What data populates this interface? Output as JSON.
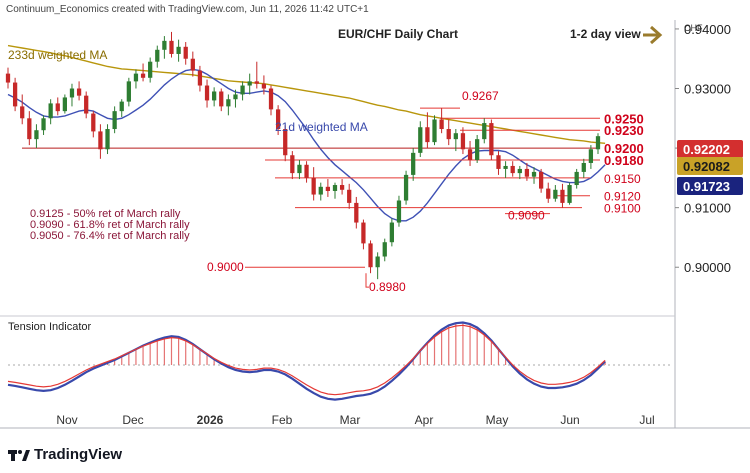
{
  "header": {
    "credit": "Continuum_Economics created with TradingView.com, Jun 11, 2026 11:42 UTC+1",
    "title": "EUR/CHF Daily Chart",
    "view_label": "1-2 day view",
    "currency": "CHF"
  },
  "colors": {
    "candle_up": "#2e7d32",
    "candle_down": "#c62828",
    "ma233": "#b8960c",
    "ma21": "#3f51b5",
    "levels": "#d0021b",
    "arrow": "#9a7b2c",
    "badge_last": "#d32f2f",
    "badge_ma233": "#c9a227",
    "badge_ma21": "#1a237e",
    "tension_bar": "#e57373"
  },
  "annotations": {
    "ma233_label": "233d weighted MA",
    "ma21_label": "21d weighted MA",
    "notes": [
      "0.9125 - 50% ret of March rally",
      "0.9090 - 61.8% ret of March rally",
      "0.9050 - 76.4% ret of March rally"
    ],
    "tension_label": "Tension Indicator"
  },
  "footer": {
    "brand": "TradingView"
  },
  "chart_data": {
    "type": "candlestick",
    "title": "EUR/CHF Daily Chart",
    "ylim": [
      0.8945,
      0.9415
    ],
    "price_ticks": [
      0.9,
      0.91,
      0.92,
      0.93,
      0.94
    ],
    "price_tick_labels": [
      "0.90000",
      "0.91000",
      "0.92000",
      "0.93000",
      "0.94000"
    ],
    "x_tick_labels": [
      "Nov",
      "Dec",
      "2026",
      "Feb",
      "Mar",
      "Apr",
      "May",
      "Jun",
      "Jul"
    ],
    "ohlc": [
      {
        "o": 0.9325,
        "h": 0.9335,
        "l": 0.93,
        "c": 0.931
      },
      {
        "o": 0.931,
        "h": 0.9318,
        "l": 0.9262,
        "c": 0.927
      },
      {
        "o": 0.927,
        "h": 0.929,
        "l": 0.924,
        "c": 0.925
      },
      {
        "o": 0.925,
        "h": 0.9262,
        "l": 0.9205,
        "c": 0.9215
      },
      {
        "o": 0.9215,
        "h": 0.924,
        "l": 0.92,
        "c": 0.923
      },
      {
        "o": 0.923,
        "h": 0.9255,
        "l": 0.9222,
        "c": 0.925
      },
      {
        "o": 0.925,
        "h": 0.9282,
        "l": 0.924,
        "c": 0.9275
      },
      {
        "o": 0.9275,
        "h": 0.9285,
        "l": 0.9255,
        "c": 0.9262
      },
      {
        "o": 0.9262,
        "h": 0.929,
        "l": 0.9258,
        "c": 0.9285
      },
      {
        "o": 0.9285,
        "h": 0.9308,
        "l": 0.927,
        "c": 0.93
      },
      {
        "o": 0.93,
        "h": 0.9312,
        "l": 0.928,
        "c": 0.9288
      },
      {
        "o": 0.9288,
        "h": 0.9295,
        "l": 0.925,
        "c": 0.9258
      },
      {
        "o": 0.9258,
        "h": 0.9262,
        "l": 0.9218,
        "c": 0.9228
      },
      {
        "o": 0.9228,
        "h": 0.924,
        "l": 0.9182,
        "c": 0.9198
      },
      {
        "o": 0.9198,
        "h": 0.924,
        "l": 0.919,
        "c": 0.9232
      },
      {
        "o": 0.9232,
        "h": 0.927,
        "l": 0.9225,
        "c": 0.9262
      },
      {
        "o": 0.9262,
        "h": 0.9282,
        "l": 0.9252,
        "c": 0.9278
      },
      {
        "o": 0.9278,
        "h": 0.9318,
        "l": 0.927,
        "c": 0.9312
      },
      {
        "o": 0.9312,
        "h": 0.9332,
        "l": 0.93,
        "c": 0.9325
      },
      {
        "o": 0.9325,
        "h": 0.9342,
        "l": 0.9312,
        "c": 0.9318
      },
      {
        "o": 0.9318,
        "h": 0.9352,
        "l": 0.931,
        "c": 0.9345
      },
      {
        "o": 0.9345,
        "h": 0.9372,
        "l": 0.9335,
        "c": 0.9365
      },
      {
        "o": 0.9365,
        "h": 0.9388,
        "l": 0.935,
        "c": 0.938
      },
      {
        "o": 0.938,
        "h": 0.9395,
        "l": 0.9352,
        "c": 0.9358
      },
      {
        "o": 0.9358,
        "h": 0.9382,
        "l": 0.9345,
        "c": 0.937
      },
      {
        "o": 0.937,
        "h": 0.9378,
        "l": 0.934,
        "c": 0.935
      },
      {
        "o": 0.935,
        "h": 0.9362,
        "l": 0.932,
        "c": 0.933
      },
      {
        "o": 0.933,
        "h": 0.9338,
        "l": 0.9295,
        "c": 0.9305
      },
      {
        "o": 0.9305,
        "h": 0.9315,
        "l": 0.9268,
        "c": 0.928
      },
      {
        "o": 0.928,
        "h": 0.9302,
        "l": 0.927,
        "c": 0.9295
      },
      {
        "o": 0.9295,
        "h": 0.93,
        "l": 0.9262,
        "c": 0.927
      },
      {
        "o": 0.927,
        "h": 0.929,
        "l": 0.9255,
        "c": 0.9282
      },
      {
        "o": 0.9282,
        "h": 0.9298,
        "l": 0.9268,
        "c": 0.929
      },
      {
        "o": 0.929,
        "h": 0.9312,
        "l": 0.928,
        "c": 0.9305
      },
      {
        "o": 0.9305,
        "h": 0.9325,
        "l": 0.929,
        "c": 0.9312
      },
      {
        "o": 0.9312,
        "h": 0.9345,
        "l": 0.93,
        "c": 0.9308
      },
      {
        "o": 0.9308,
        "h": 0.9322,
        "l": 0.929,
        "c": 0.93
      },
      {
        "o": 0.93,
        "h": 0.9305,
        "l": 0.9255,
        "c": 0.9265
      },
      {
        "o": 0.9265,
        "h": 0.9272,
        "l": 0.9222,
        "c": 0.9232
      },
      {
        "o": 0.9232,
        "h": 0.9238,
        "l": 0.9178,
        "c": 0.9188
      },
      {
        "o": 0.9188,
        "h": 0.9195,
        "l": 0.9148,
        "c": 0.9158
      },
      {
        "o": 0.9158,
        "h": 0.918,
        "l": 0.9148,
        "c": 0.9172
      },
      {
        "o": 0.9172,
        "h": 0.9178,
        "l": 0.9142,
        "c": 0.915
      },
      {
        "o": 0.915,
        "h": 0.9168,
        "l": 0.9112,
        "c": 0.9122
      },
      {
        "o": 0.9122,
        "h": 0.9142,
        "l": 0.9112,
        "c": 0.9135
      },
      {
        "o": 0.9135,
        "h": 0.9148,
        "l": 0.9118,
        "c": 0.9128
      },
      {
        "o": 0.9128,
        "h": 0.9142,
        "l": 0.9115,
        "c": 0.9138
      },
      {
        "o": 0.9138,
        "h": 0.9148,
        "l": 0.9122,
        "c": 0.913
      },
      {
        "o": 0.913,
        "h": 0.914,
        "l": 0.9098,
        "c": 0.9108
      },
      {
        "o": 0.9108,
        "h": 0.9118,
        "l": 0.9065,
        "c": 0.9075
      },
      {
        "o": 0.9075,
        "h": 0.908,
        "l": 0.903,
        "c": 0.904
      },
      {
        "o": 0.904,
        "h": 0.9045,
        "l": 0.899,
        "c": 0.9
      },
      {
        "o": 0.9,
        "h": 0.9025,
        "l": 0.898,
        "c": 0.9018
      },
      {
        "o": 0.9018,
        "h": 0.9048,
        "l": 0.901,
        "c": 0.9042
      },
      {
        "o": 0.9042,
        "h": 0.9082,
        "l": 0.9035,
        "c": 0.9075
      },
      {
        "o": 0.9075,
        "h": 0.912,
        "l": 0.9068,
        "c": 0.9112
      },
      {
        "o": 0.9112,
        "h": 0.9162,
        "l": 0.9105,
        "c": 0.9155
      },
      {
        "o": 0.9155,
        "h": 0.92,
        "l": 0.9145,
        "c": 0.9192
      },
      {
        "o": 0.9192,
        "h": 0.9245,
        "l": 0.9185,
        "c": 0.9235
      },
      {
        "o": 0.9235,
        "h": 0.926,
        "l": 0.92,
        "c": 0.921
      },
      {
        "o": 0.921,
        "h": 0.9255,
        "l": 0.9205,
        "c": 0.9248
      },
      {
        "o": 0.9248,
        "h": 0.9267,
        "l": 0.9225,
        "c": 0.9232
      },
      {
        "o": 0.9232,
        "h": 0.9248,
        "l": 0.9205,
        "c": 0.9215
      },
      {
        "o": 0.9215,
        "h": 0.9232,
        "l": 0.9195,
        "c": 0.9225
      },
      {
        "o": 0.9225,
        "h": 0.9235,
        "l": 0.919,
        "c": 0.9198
      },
      {
        "o": 0.9198,
        "h": 0.9212,
        "l": 0.917,
        "c": 0.918
      },
      {
        "o": 0.918,
        "h": 0.9222,
        "l": 0.9175,
        "c": 0.9215
      },
      {
        "o": 0.9215,
        "h": 0.925,
        "l": 0.9208,
        "c": 0.9242
      },
      {
        "o": 0.9242,
        "h": 0.9248,
        "l": 0.918,
        "c": 0.9188
      },
      {
        "o": 0.9188,
        "h": 0.9195,
        "l": 0.9155,
        "c": 0.9165
      },
      {
        "o": 0.9165,
        "h": 0.9178,
        "l": 0.915,
        "c": 0.917
      },
      {
        "o": 0.917,
        "h": 0.9178,
        "l": 0.9152,
        "c": 0.9158
      },
      {
        "o": 0.9158,
        "h": 0.917,
        "l": 0.9148,
        "c": 0.9165
      },
      {
        "o": 0.9165,
        "h": 0.9175,
        "l": 0.9145,
        "c": 0.9152
      },
      {
        "o": 0.9152,
        "h": 0.9168,
        "l": 0.914,
        "c": 0.916
      },
      {
        "o": 0.916,
        "h": 0.9165,
        "l": 0.9125,
        "c": 0.9132
      },
      {
        "o": 0.9132,
        "h": 0.9142,
        "l": 0.9108,
        "c": 0.9115
      },
      {
        "o": 0.9115,
        "h": 0.9138,
        "l": 0.911,
        "c": 0.913
      },
      {
        "o": 0.913,
        "h": 0.914,
        "l": 0.91,
        "c": 0.9108
      },
      {
        "o": 0.9108,
        "h": 0.9142,
        "l": 0.9105,
        "c": 0.9138
      },
      {
        "o": 0.9138,
        "h": 0.9165,
        "l": 0.9132,
        "c": 0.916
      },
      {
        "o": 0.916,
        "h": 0.9182,
        "l": 0.915,
        "c": 0.9175
      },
      {
        "o": 0.9175,
        "h": 0.9205,
        "l": 0.9165,
        "c": 0.9198
      },
      {
        "o": 0.9198,
        "h": 0.9225,
        "l": 0.919,
        "c": 0.922
      }
    ],
    "ma233": [
      0.9372,
      0.937,
      0.9368,
      0.9366,
      0.9364,
      0.9362,
      0.936,
      0.9357,
      0.9355,
      0.9352,
      0.9349,
      0.9346,
      0.9343,
      0.934,
      0.9337,
      0.9335,
      0.9333,
      0.9332,
      0.9331,
      0.933,
      0.9329,
      0.9328,
      0.9327,
      0.9326,
      0.9325,
      0.9324,
      0.9323,
      0.9321,
      0.9319,
      0.9317,
      0.9315,
      0.9313,
      0.9312,
      0.9311,
      0.931,
      0.9309,
      0.9308,
      0.9306,
      0.9304,
      0.9302,
      0.93,
      0.9298,
      0.9296,
      0.9294,
      0.9292,
      0.929,
      0.9288,
      0.9286,
      0.9284,
      0.9281,
      0.9278,
      0.9275,
      0.9272,
      0.927,
      0.9267,
      0.9264,
      0.9262,
      0.9259,
      0.9256,
      0.9254,
      0.9252,
      0.925,
      0.9248,
      0.9246,
      0.9244,
      0.9242,
      0.924,
      0.9238,
      0.9236,
      0.9234,
      0.9232,
      0.923,
      0.9228,
      0.9226,
      0.9224,
      0.9222,
      0.922,
      0.9218,
      0.9216,
      0.9214,
      0.9213,
      0.9212,
      0.921,
      0.9209,
      0.9208
    ],
    "ma21": [
      0.929,
      0.9284,
      0.9277,
      0.9268,
      0.926,
      0.9254,
      0.9252,
      0.9252,
      0.9254,
      0.9258,
      0.9262,
      0.9264,
      0.9262,
      0.9256,
      0.925,
      0.9248,
      0.925,
      0.9256,
      0.9264,
      0.9272,
      0.9282,
      0.9294,
      0.9306,
      0.9316,
      0.9324,
      0.933,
      0.9332,
      0.933,
      0.9324,
      0.9316,
      0.9308,
      0.93,
      0.9294,
      0.9292,
      0.9292,
      0.9294,
      0.9296,
      0.9294,
      0.9288,
      0.9278,
      0.9264,
      0.9248,
      0.9232,
      0.9214,
      0.9198,
      0.9184,
      0.9172,
      0.9162,
      0.9152,
      0.9142,
      0.913,
      0.9116,
      0.9102,
      0.909,
      0.9082,
      0.9078,
      0.9078,
      0.9084,
      0.9094,
      0.9108,
      0.9124,
      0.914,
      0.9156,
      0.917,
      0.9182,
      0.919,
      0.9195,
      0.9196,
      0.9196,
      0.9196,
      0.9194,
      0.9188,
      0.918,
      0.9172,
      0.9166,
      0.916,
      0.9154,
      0.9148,
      0.9144,
      0.9142,
      0.9142,
      0.9144,
      0.915,
      0.916,
      0.9172
    ],
    "levels": [
      {
        "value": 0.9267,
        "label": "0.9267",
        "side": "above-left"
      },
      {
        "value": 0.925,
        "label": "0.9250",
        "side": "right",
        "bold": true
      },
      {
        "value": 0.923,
        "label": "0.9230",
        "side": "right",
        "bold": true
      },
      {
        "value": 0.92,
        "label": "0.9200",
        "side": "right",
        "bold": true
      },
      {
        "value": 0.918,
        "label": "0.9180",
        "side": "right",
        "bold": true
      },
      {
        "value": 0.915,
        "label": "0.9150",
        "side": "right"
      },
      {
        "value": 0.912,
        "label": "0.9120",
        "side": "right"
      },
      {
        "value": 0.91,
        "label": "0.9100",
        "side": "right"
      },
      {
        "value": 0.909,
        "label": "0.9090",
        "side": "below"
      },
      {
        "value": 0.9,
        "label": "0.9000",
        "side": "left"
      },
      {
        "value": 0.898,
        "label": "0.8980",
        "side": "below-right"
      }
    ],
    "price_badges": [
      {
        "name": "last",
        "value": 0.92202,
        "label": "0.92202"
      },
      {
        "name": "ma233",
        "value": 0.92082,
        "label": "0.92082"
      },
      {
        "name": "ma21",
        "value": 0.91723,
        "label": "0.91723"
      }
    ],
    "tension": [
      -0.55,
      -0.58,
      -0.62,
      -0.66,
      -0.7,
      -0.72,
      -0.7,
      -0.64,
      -0.55,
      -0.44,
      -0.32,
      -0.2,
      -0.1,
      -0.02,
      0.06,
      0.14,
      0.24,
      0.34,
      0.44,
      0.54,
      0.62,
      0.7,
      0.76,
      0.8,
      0.78,
      0.7,
      0.58,
      0.44,
      0.3,
      0.16,
      0.04,
      -0.06,
      -0.14,
      -0.18,
      -0.2,
      -0.18,
      -0.14,
      -0.14,
      -0.18,
      -0.26,
      -0.38,
      -0.52,
      -0.66,
      -0.78,
      -0.88,
      -0.94,
      -0.96,
      -0.94,
      -0.9,
      -0.86,
      -0.84,
      -0.8,
      -0.72,
      -0.6,
      -0.44,
      -0.26,
      -0.06,
      0.16,
      0.4,
      0.62,
      0.82,
      0.98,
      1.1,
      1.16,
      1.18,
      1.14,
      1.04,
      0.88,
      0.68,
      0.44,
      0.2,
      -0.04,
      -0.24,
      -0.4,
      -0.52,
      -0.6,
      -0.64,
      -0.64,
      -0.62,
      -0.58,
      -0.52,
      -0.42,
      -0.28,
      -0.1,
      0.1
    ]
  }
}
